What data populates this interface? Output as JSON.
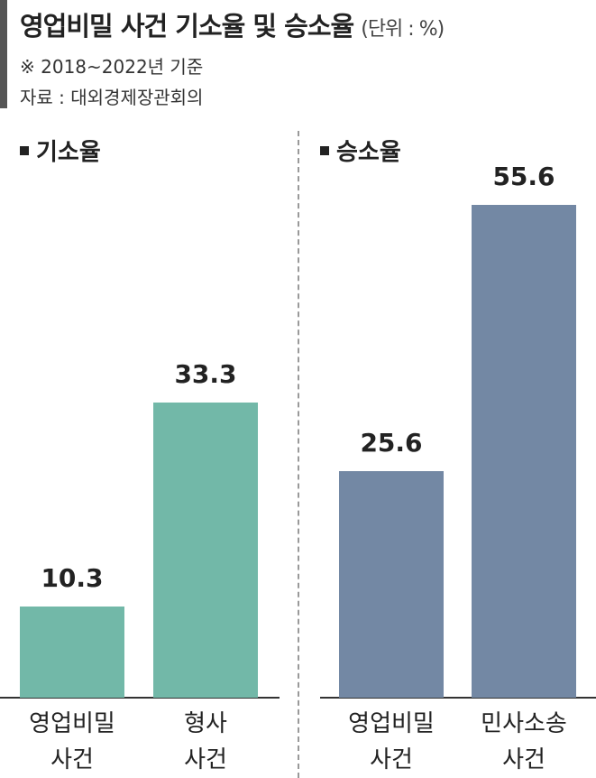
{
  "title": "영업비밀 사건 기소율 및 승소율",
  "unit": "(단위 : %)",
  "note": "※ 2018~2022년 기준",
  "source": "자료 : 대외경제장관회의",
  "chart_data": [
    {
      "type": "bar",
      "title": "기소율",
      "categories": [
        "영업비밀\n사건",
        "형사\n사건"
      ],
      "values": [
        10.3,
        33.3
      ],
      "color": "#72b8a8"
    },
    {
      "type": "bar",
      "title": "승소율",
      "categories": [
        "영업비밀\n사건",
        "민사소송\n사건"
      ],
      "values": [
        25.6,
        55.6
      ],
      "color": "#7388a4"
    }
  ]
}
